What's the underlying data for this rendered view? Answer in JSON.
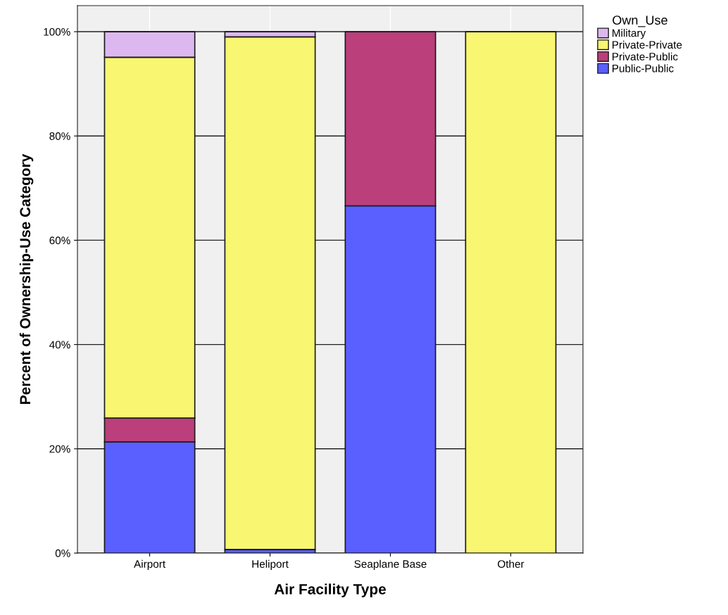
{
  "chart_data": {
    "type": "bar",
    "stacked": true,
    "xlabel": "Air Facility Type",
    "ylabel": "Percent of Ownership-Use Category",
    "categories": [
      "Airport",
      "Heliport",
      "Seaplane Base",
      "Other"
    ],
    "series": [
      {
        "name": "Public-Public",
        "color": "#5a5fff",
        "values": [
          21.3,
          0.7,
          66.6,
          null
        ]
      },
      {
        "name": "Private-Public",
        "color": "#ba3f7a",
        "values": [
          4.6,
          null,
          33.4,
          null
        ]
      },
      {
        "name": "Private-Private",
        "color": "#f9f671",
        "values": [
          69.2,
          98.3,
          null,
          100
        ]
      },
      {
        "name": "Military",
        "color": "#ddb8f0",
        "values": [
          4.9,
          1.0,
          null,
          null
        ]
      }
    ],
    "legend_title": "Own_Use",
    "legend": "top right",
    "ylim": [
      0,
      105
    ],
    "yticks": [
      {
        "value": 0,
        "label": "0%"
      },
      {
        "value": 20,
        "label": "20%"
      },
      {
        "value": 40,
        "label": "40%"
      },
      {
        "value": 60,
        "label": "60%"
      },
      {
        "value": 80,
        "label": "80%"
      },
      {
        "value": 100,
        "label": "100%"
      }
    ],
    "grid": true
  }
}
